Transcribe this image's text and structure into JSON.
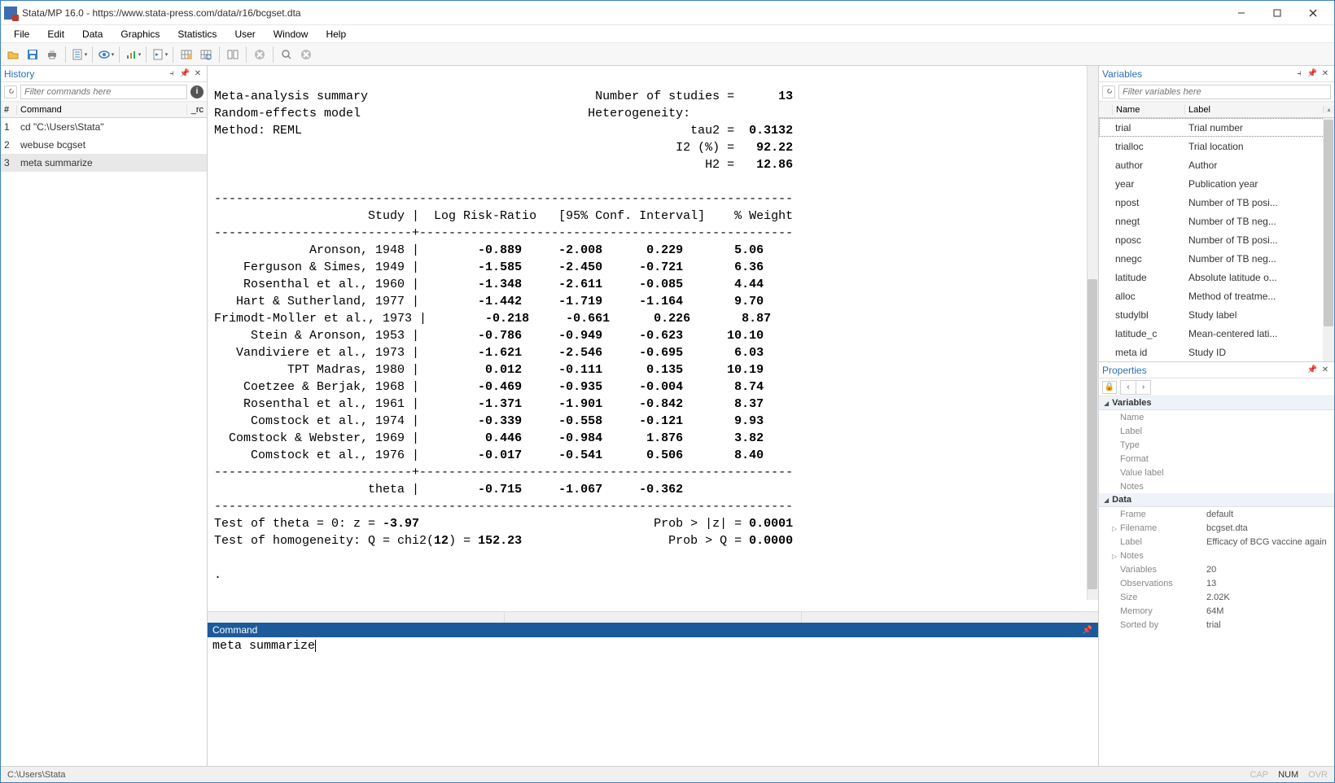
{
  "title": "Stata/MP 16.0 - https://www.stata-press.com/data/r16/bcgset.dta",
  "menu": [
    "File",
    "Edit",
    "Data",
    "Graphics",
    "Statistics",
    "User",
    "Window",
    "Help"
  ],
  "history": {
    "filter_placeholder": "Filter commands here",
    "head_num": "#",
    "head_cmd": "Command",
    "head_rc": "_rc",
    "items": [
      {
        "n": "1",
        "cmd": "cd \"C:\\Users\\Stata\""
      },
      {
        "n": "2",
        "cmd": "webuse bcgset"
      },
      {
        "n": "3",
        "cmd": "meta summarize",
        "sel": true
      }
    ],
    "title": "History"
  },
  "results": {
    "header_left1": "Meta-analysis summary",
    "header_left2": "Random-effects model",
    "header_left3": "Method: REML",
    "n_studies_label": "Number of studies =",
    "n_studies": "13",
    "heterog_label": "Heterogeneity:",
    "tau2_label": "tau2 =",
    "tau2": "0.3132",
    "i2_label": "I2 (%) =",
    "i2": "92.22",
    "h2_label": "H2 =",
    "h2": "12.86",
    "col_study": "Study",
    "col_lrr": "Log Risk-Ratio",
    "col_ci": "[95% Conf. Interval]",
    "col_wt": "% Weight",
    "rows": [
      {
        "study": "Aronson, 1948",
        "lrr": "-0.889",
        "lo": "-2.008",
        "hi": "0.229",
        "wt": "5.06"
      },
      {
        "study": "Ferguson & Simes, 1949",
        "lrr": "-1.585",
        "lo": "-2.450",
        "hi": "-0.721",
        "wt": "6.36"
      },
      {
        "study": "Rosenthal et al., 1960",
        "lrr": "-1.348",
        "lo": "-2.611",
        "hi": "-0.085",
        "wt": "4.44"
      },
      {
        "study": "Hart & Sutherland, 1977",
        "lrr": "-1.442",
        "lo": "-1.719",
        "hi": "-1.164",
        "wt": "9.70"
      },
      {
        "study": "Frimodt-Moller et al., 1973",
        "lrr": "-0.218",
        "lo": "-0.661",
        "hi": "0.226",
        "wt": "8.87"
      },
      {
        "study": "Stein & Aronson, 1953",
        "lrr": "-0.786",
        "lo": "-0.949",
        "hi": "-0.623",
        "wt": "10.10"
      },
      {
        "study": "Vandiviere et al., 1973",
        "lrr": "-1.621",
        "lo": "-2.546",
        "hi": "-0.695",
        "wt": "6.03"
      },
      {
        "study": "TPT Madras, 1980",
        "lrr": "0.012",
        "lo": "-0.111",
        "hi": "0.135",
        "wt": "10.19"
      },
      {
        "study": "Coetzee & Berjak, 1968",
        "lrr": "-0.469",
        "lo": "-0.935",
        "hi": "-0.004",
        "wt": "8.74"
      },
      {
        "study": "Rosenthal et al., 1961",
        "lrr": "-1.371",
        "lo": "-1.901",
        "hi": "-0.842",
        "wt": "8.37"
      },
      {
        "study": "Comstock et al., 1974",
        "lrr": "-0.339",
        "lo": "-0.558",
        "hi": "-0.121",
        "wt": "9.93"
      },
      {
        "study": "Comstock & Webster, 1969",
        "lrr": "0.446",
        "lo": "-0.984",
        "hi": "1.876",
        "wt": "3.82"
      },
      {
        "study": "Comstock et al., 1976",
        "lrr": "-0.017",
        "lo": "-0.541",
        "hi": "0.506",
        "wt": "8.40"
      }
    ],
    "theta_label": "theta",
    "theta_lrr": "-0.715",
    "theta_lo": "-1.067",
    "theta_hi": "-0.362",
    "test1_pre": "Test of theta = 0: z = ",
    "test1_z": "-3.97",
    "test1_prob_label": "Prob > |z| = ",
    "test1_prob": "0.0001",
    "test2_pre": "Test of homogeneity: Q = chi2(",
    "test2_df": "12",
    "test2_mid": ") = ",
    "test2_q": "152.23",
    "test2_prob_label": "Prob > Q = ",
    "test2_prob": "0.0000",
    "prompt": "."
  },
  "command": {
    "title": "Command",
    "text": "meta summarize"
  },
  "variables": {
    "title": "Variables",
    "filter_placeholder": "Filter variables here",
    "head_name": "Name",
    "head_label": "Label",
    "items": [
      {
        "name": "trial",
        "label": "Trial number"
      },
      {
        "name": "trialloc",
        "label": "Trial location"
      },
      {
        "name": "author",
        "label": "Author"
      },
      {
        "name": "year",
        "label": "Publication year"
      },
      {
        "name": "npost",
        "label": "Number of TB posi..."
      },
      {
        "name": "nnegt",
        "label": "Number of TB neg..."
      },
      {
        "name": "nposc",
        "label": "Number of TB posi..."
      },
      {
        "name": "nnegc",
        "label": "Number of TB neg..."
      },
      {
        "name": "latitude",
        "label": "Absolute latitude o..."
      },
      {
        "name": "alloc",
        "label": "Method of treatme..."
      },
      {
        "name": "studylbl",
        "label": "Study label"
      },
      {
        "name": "latitude_c",
        "label": "Mean-centered lati..."
      },
      {
        "name": "meta id",
        "label": "Study ID"
      }
    ]
  },
  "properties": {
    "title": "Properties",
    "sections": {
      "variables": {
        "title": "Variables",
        "rows": [
          {
            "k": "Name",
            "v": ""
          },
          {
            "k": "Label",
            "v": ""
          },
          {
            "k": "Type",
            "v": ""
          },
          {
            "k": "Format",
            "v": ""
          },
          {
            "k": "Value label",
            "v": ""
          },
          {
            "k": "Notes",
            "v": ""
          }
        ]
      },
      "data": {
        "title": "Data",
        "rows": [
          {
            "k": "Frame",
            "v": "default"
          },
          {
            "k": "Filename",
            "v": "bcgset.dta",
            "expand": true
          },
          {
            "k": "Label",
            "v": "Efficacy of BCG vaccine again"
          },
          {
            "k": "Notes",
            "v": "",
            "expand": true
          },
          {
            "k": "Variables",
            "v": "20"
          },
          {
            "k": "Observations",
            "v": "13"
          },
          {
            "k": "Size",
            "v": "2.02K"
          },
          {
            "k": "Memory",
            "v": "64M"
          },
          {
            "k": "Sorted by",
            "v": "trial"
          }
        ]
      }
    }
  },
  "status": {
    "path": "C:\\Users\\Stata",
    "cap": "CAP",
    "num": "NUM",
    "ovr": "OVR"
  },
  "colors": {
    "accent": "#1d5a9a",
    "link": "#2e6eb5",
    "border": "#d0d0d0"
  }
}
